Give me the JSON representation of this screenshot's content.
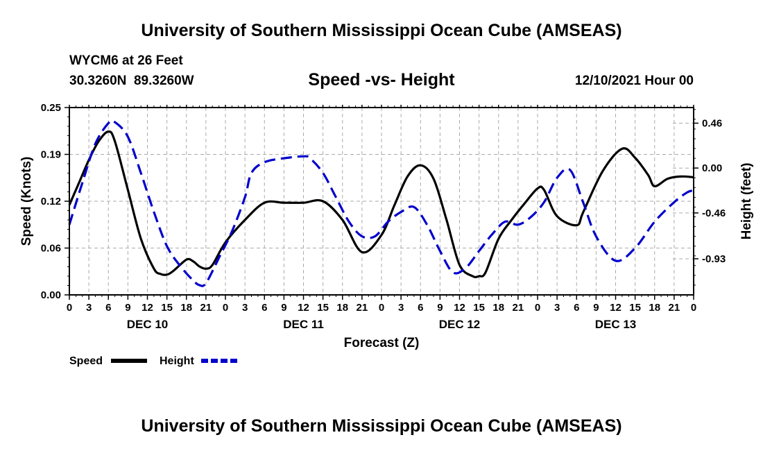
{
  "header": {
    "title": "University of Southern Mississippi Ocean Cube (AMSEAS)",
    "station": "WYCM6 at 26 Feet",
    "coords": "30.3260N  89.3260W",
    "subtitle": "Speed -vs- Height",
    "date": "12/10/2021 Hour 00"
  },
  "footer": {
    "title": "University of Southern Mississippi Ocean Cube (AMSEAS)"
  },
  "colors": {
    "speed": "#000000",
    "height": "#0000cc",
    "grid": "#aaaaaa"
  },
  "chart_data": {
    "type": "line",
    "title": "Speed -vs- Height",
    "xlabel": "Forecast (Z)",
    "ylabel": "Speed (Knots)",
    "y2label": "Height (feet)",
    "x_hours_range": [
      0,
      96
    ],
    "x_tick_labels": [
      "0",
      "3",
      "6",
      "9",
      "12",
      "15",
      "18",
      "21",
      "0",
      "3",
      "6",
      "9",
      "12",
      "15",
      "18",
      "21",
      "0",
      "3",
      "6",
      "9",
      "12",
      "15",
      "18",
      "21",
      "0",
      "3",
      "6",
      "9",
      "12",
      "15",
      "18",
      "21",
      "0"
    ],
    "day_labels": [
      {
        "hour": 12,
        "label": "DEC 10"
      },
      {
        "hour": 36,
        "label": "DEC 11"
      },
      {
        "hour": 60,
        "label": "DEC 12"
      },
      {
        "hour": 84,
        "label": "DEC 13"
      }
    ],
    "ylim": [
      0,
      0.25
    ],
    "y_ticks": [
      "0.00",
      "0.06",
      "0.12",
      "0.19",
      "0.25"
    ],
    "y2lim": [
      -1.3,
      0.62
    ],
    "y2_ticks": [
      "-0.93",
      "-0.46",
      "0.00",
      "0.46"
    ],
    "series": [
      {
        "name": "Speed",
        "axis": "left",
        "style": "solid",
        "x": [
          0,
          1.5,
          3,
          4.5,
          6,
          7,
          9,
          11,
          13,
          14,
          15,
          16,
          18,
          19,
          20,
          21,
          22,
          24,
          27,
          30,
          33,
          36,
          39,
          42,
          45,
          48,
          50,
          52,
          54,
          56,
          58,
          60,
          62,
          63,
          64,
          66,
          68,
          70,
          72,
          73,
          75,
          78,
          79,
          82,
          85,
          87,
          89,
          90,
          92,
          94,
          96
        ],
        "y": [
          0.12,
          0.15,
          0.18,
          0.205,
          0.218,
          0.205,
          0.14,
          0.075,
          0.035,
          0.028,
          0.027,
          0.032,
          0.047,
          0.045,
          0.038,
          0.035,
          0.04,
          0.07,
          0.1,
          0.123,
          0.123,
          0.123,
          0.125,
          0.1,
          0.057,
          0.08,
          0.12,
          0.158,
          0.173,
          0.155,
          0.1,
          0.04,
          0.025,
          0.025,
          0.03,
          0.075,
          0.1,
          0.122,
          0.142,
          0.14,
          0.105,
          0.093,
          0.11,
          0.165,
          0.195,
          0.183,
          0.16,
          0.145,
          0.155,
          0.158,
          0.157
        ]
      },
      {
        "name": "Height",
        "axis": "right",
        "style": "dashed",
        "x": [
          0,
          2,
          4,
          6,
          7,
          9,
          11,
          13,
          15,
          17,
          19,
          20,
          21,
          23,
          25,
          27,
          28,
          30,
          33,
          36,
          37,
          39,
          41,
          43,
          45,
          47,
          49,
          51,
          53,
          55,
          57,
          59,
          61,
          63,
          65,
          67,
          69,
          71,
          73,
          75,
          77,
          79,
          81,
          84,
          87,
          90,
          93,
          95,
          96
        ],
        "y": [
          -0.58,
          -0.15,
          0.25,
          0.46,
          0.47,
          0.32,
          -0.05,
          -0.45,
          -0.8,
          -1.0,
          -1.15,
          -1.2,
          -1.18,
          -0.92,
          -0.65,
          -0.3,
          -0.05,
          0.06,
          0.1,
          0.12,
          0.1,
          -0.05,
          -0.3,
          -0.55,
          -0.7,
          -0.7,
          -0.55,
          -0.45,
          -0.4,
          -0.58,
          -0.85,
          -1.07,
          -1.02,
          -0.85,
          -0.68,
          -0.55,
          -0.58,
          -0.5,
          -0.35,
          -0.1,
          -0.02,
          -0.35,
          -0.7,
          -0.95,
          -0.82,
          -0.55,
          -0.35,
          -0.25,
          -0.23
        ]
      }
    ],
    "legend": {
      "placement": "bottom-left",
      "items": [
        "Speed",
        "Height"
      ]
    }
  }
}
